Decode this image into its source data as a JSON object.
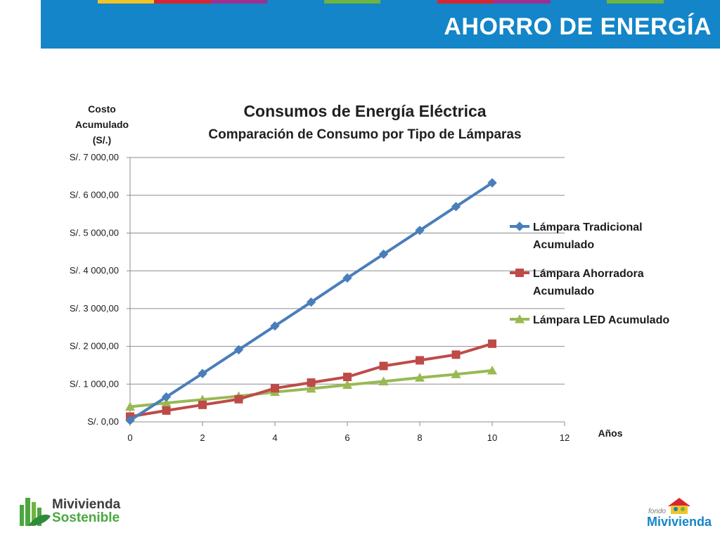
{
  "header": {
    "title": "AHORRO DE ENERGÍA",
    "strip_colors": [
      "#1385c8",
      "#f2c428",
      "#d7262f",
      "#9c2f8f",
      "#1385c8",
      "#6fb43f",
      "#1385c8",
      "#d7262f",
      "#9c2f8f",
      "#1385c8",
      "#6fb43f",
      "#1385c8"
    ]
  },
  "logos": {
    "left_line1": "Mivivienda",
    "left_line2": "Sostenible",
    "right_small": "fondo",
    "right_big": "Mivivienda"
  },
  "chart_data": {
    "type": "line",
    "title": "Consumos de Energía Eléctrica",
    "subtitle": "Comparación de Consumo por Tipo de Lámparas",
    "ylabel": [
      "Costo",
      "Acumulado",
      "(S/.)"
    ],
    "xlabel": "Años",
    "xlim": [
      0,
      12
    ],
    "xticks": [
      0,
      2,
      4,
      6,
      8,
      10,
      12
    ],
    "ylim": [
      0,
      7000
    ],
    "yticks": [
      0,
      1000,
      2000,
      3000,
      4000,
      5000,
      6000,
      7000
    ],
    "ytick_labels": [
      "S/. 0,00",
      "S/. 1 000,00",
      "S/. 2 000,00",
      "S/. 3 000,00",
      "S/. 4 000,00",
      "S/. 5 000,00",
      "S/. 6 000,00",
      "S/. 7 000,00"
    ],
    "grid": "horizontal",
    "legend_position": "right",
    "series": [
      {
        "name_lines": [
          "Lámpara Tradicional",
          "Acumulado"
        ],
        "color": "#4a7ebb",
        "marker": "diamond",
        "x": [
          0,
          1,
          2,
          3,
          4,
          5,
          6,
          7,
          8,
          9,
          10
        ],
        "values": [
          40,
          660,
          1280,
          1910,
          2540,
          3170,
          3810,
          4440,
          5070,
          5700,
          6330
        ]
      },
      {
        "name_lines": [
          "Lámpara  Ahorradora",
          "Acumulado"
        ],
        "color": "#be4b48",
        "marker": "square",
        "x": [
          0,
          1,
          2,
          3,
          4,
          5,
          6,
          7,
          8,
          9,
          10
        ],
        "values": [
          140,
          300,
          450,
          600,
          890,
          1040,
          1190,
          1480,
          1630,
          1780,
          2070
        ]
      },
      {
        "name_lines": [
          "Lámpara LED Acumulado"
        ],
        "color": "#98b954",
        "marker": "triangle",
        "x": [
          0,
          1,
          2,
          3,
          4,
          5,
          6,
          7,
          8,
          9,
          10
        ],
        "values": [
          400,
          500,
          590,
          680,
          790,
          880,
          980,
          1070,
          1170,
          1260,
          1360
        ]
      }
    ]
  }
}
